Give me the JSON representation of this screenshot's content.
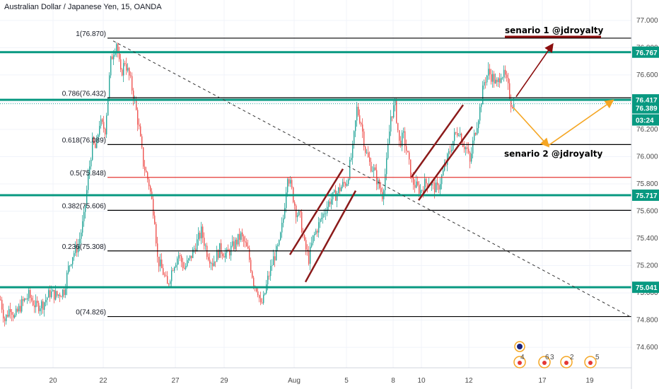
{
  "chart_data": {
    "type": "candlestick",
    "title": "Australian Dollar / Japanese Yen, 15, OANDA",
    "ylim": [
      74.45,
      77.15
    ],
    "y_ticks": [
      "77.000",
      "76.800",
      "76.600",
      "76.400",
      "76.200",
      "76.000",
      "75.800",
      "75.600",
      "75.400",
      "75.200",
      "75.000",
      "74.800",
      "74.600"
    ],
    "x_ticks": [
      "20",
      "22",
      "27",
      "29",
      "Aug",
      "5",
      "8",
      "10",
      "12",
      "17",
      "19"
    ],
    "colors": {
      "up": "#26a69a",
      "down": "#ef5350",
      "level": "#089981",
      "fib": "#000000",
      "fib_mid": "#e53935",
      "scenario1": "#8b0e0e",
      "scenario2": "#f5a623",
      "channel": "#8b1a1a"
    },
    "price_path": [
      [
        0,
        74.95
      ],
      [
        6,
        74.8
      ],
      [
        14,
        74.9
      ],
      [
        20,
        74.82
      ],
      [
        30,
        74.92
      ],
      [
        40,
        74.98
      ],
      [
        50,
        74.9
      ],
      [
        60,
        74.92
      ],
      [
        70,
        75.0
      ],
      [
        80,
        74.98
      ],
      [
        90,
        75.02
      ],
      [
        96,
        75.18
      ],
      [
        102,
        75.28
      ],
      [
        110,
        75.35
      ],
      [
        118,
        75.55
      ],
      [
        124,
        75.85
      ],
      [
        130,
        76.1
      ],
      [
        135,
        76.05
      ],
      [
        140,
        76.25
      ],
      [
        148,
        76.2
      ],
      [
        152,
        76.45
      ],
      [
        156,
        76.7
      ],
      [
        160,
        76.78
      ],
      [
        164,
        76.84
      ],
      [
        170,
        76.6
      ],
      [
        176,
        76.7
      ],
      [
        184,
        76.55
      ],
      [
        190,
        76.4
      ],
      [
        196,
        76.2
      ],
      [
        202,
        75.95
      ],
      [
        210,
        75.8
      ],
      [
        218,
        75.55
      ],
      [
        222,
        75.25
      ],
      [
        230,
        75.15
      ],
      [
        236,
        75.05
      ],
      [
        244,
        75.2
      ],
      [
        252,
        75.28
      ],
      [
        260,
        75.18
      ],
      [
        268,
        75.25
      ],
      [
        276,
        75.35
      ],
      [
        284,
        75.45
      ],
      [
        292,
        75.3
      ],
      [
        300,
        75.22
      ],
      [
        310,
        75.32
      ],
      [
        320,
        75.28
      ],
      [
        330,
        75.35
      ],
      [
        340,
        75.42
      ],
      [
        350,
        75.3
      ],
      [
        358,
        75.08
      ],
      [
        364,
        75.02
      ],
      [
        368,
        74.9
      ],
      [
        372,
        74.95
      ],
      [
        378,
        75.1
      ],
      [
        386,
        75.25
      ],
      [
        394,
        75.35
      ],
      [
        400,
        75.55
      ],
      [
        406,
        75.88
      ],
      [
        412,
        75.75
      ],
      [
        418,
        75.6
      ],
      [
        424,
        75.55
      ],
      [
        430,
        75.35
      ],
      [
        436,
        75.25
      ],
      [
        442,
        75.4
      ],
      [
        450,
        75.5
      ],
      [
        458,
        75.6
      ],
      [
        466,
        75.68
      ],
      [
        474,
        75.72
      ],
      [
        482,
        75.78
      ],
      [
        490,
        75.82
      ],
      [
        498,
        76.05
      ],
      [
        504,
        76.35
      ],
      [
        510,
        76.25
      ],
      [
        516,
        76.05
      ],
      [
        522,
        75.95
      ],
      [
        528,
        75.9
      ],
      [
        534,
        75.8
      ],
      [
        540,
        75.72
      ],
      [
        546,
        75.95
      ],
      [
        552,
        76.3
      ],
      [
        558,
        76.38
      ],
      [
        564,
        76.1
      ],
      [
        570,
        76.15
      ],
      [
        576,
        76.0
      ],
      [
        582,
        75.82
      ],
      [
        588,
        75.78
      ],
      [
        594,
        75.75
      ],
      [
        600,
        75.8
      ],
      [
        606,
        75.82
      ],
      [
        612,
        75.78
      ],
      [
        618,
        75.76
      ],
      [
        624,
        75.85
      ],
      [
        630,
        75.95
      ],
      [
        636,
        76.05
      ],
      [
        642,
        76.15
      ],
      [
        648,
        76.2
      ],
      [
        654,
        76.1
      ],
      [
        660,
        76.05
      ],
      [
        664,
        75.95
      ],
      [
        668,
        76.1
      ],
      [
        672,
        76.2
      ],
      [
        678,
        76.35
      ],
      [
        684,
        76.55
      ],
      [
        690,
        76.62
      ],
      [
        696,
        76.58
      ],
      [
        702,
        76.52
      ],
      [
        708,
        76.62
      ],
      [
        714,
        76.58
      ],
      [
        718,
        76.5
      ],
      [
        722,
        76.4
      ],
      [
        726,
        76.38
      ]
    ],
    "levels": [
      {
        "label": "76.767",
        "value": 76.767
      },
      {
        "label": "76.417",
        "value": 76.417
      },
      {
        "label": "75.717",
        "value": 75.717
      },
      {
        "label": "75.041",
        "value": 75.041
      }
    ],
    "current_price": "76.389",
    "countdown": "03:24",
    "fibonacci": [
      {
        "label": "1(76.870)",
        "value": 76.87
      },
      {
        "label": "0.786(76.432)",
        "value": 76.432
      },
      {
        "label": "0.618(76.089)",
        "value": 76.089
      },
      {
        "label": "0.5(75.848)",
        "value": 75.848
      },
      {
        "label": "0.382(75.606)",
        "value": 75.606
      },
      {
        "label": "0.236(75.308)",
        "value": 75.308
      },
      {
        "label": "0(74.826)",
        "value": 74.826
      }
    ],
    "annotations": [
      {
        "text": "senario 1 @jdroyalty"
      },
      {
        "text": "senario 2 @jdroyalty"
      }
    ],
    "events": [
      "4",
      "6",
      "3",
      "2",
      "5"
    ]
  }
}
